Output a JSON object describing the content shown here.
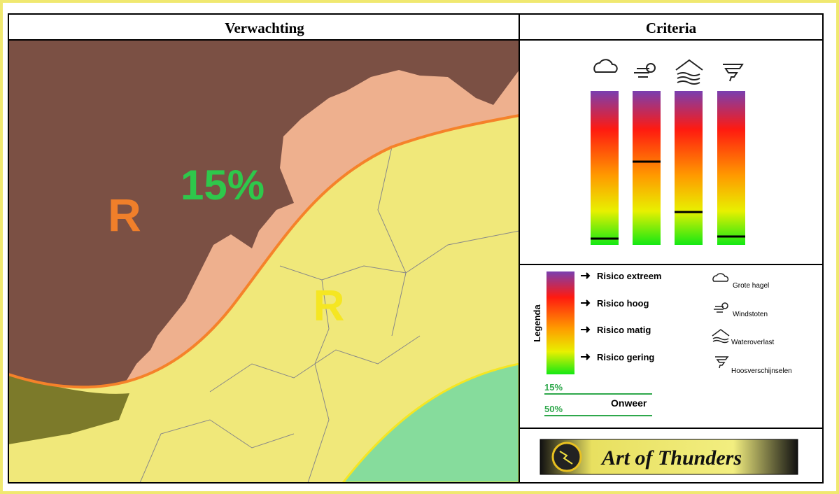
{
  "header": {
    "left": "Verwachting",
    "right": "Criteria"
  },
  "map": {
    "labels": [
      "R",
      "15%",
      "R"
    ]
  },
  "legend": {
    "title": "Legenda",
    "levels": [
      "Risico extreem",
      "Risico hoog",
      "Risico matig",
      "Risico gering"
    ],
    "hazards": [
      "Grote hagel",
      "Windstoten",
      "Wateroverlast",
      "Hoosverschijnselen"
    ],
    "lines": [
      "15%",
      "50%"
    ],
    "lines_title": "Onweer"
  },
  "logo": "Art of Thunders"
}
